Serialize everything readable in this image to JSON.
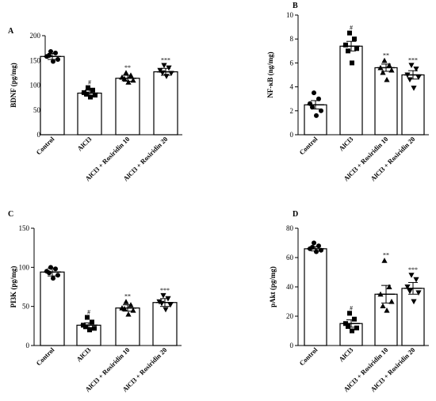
{
  "chart_data": [
    {
      "panel": "A",
      "type": "bar",
      "ylabel": "BDNF (pg/mg)",
      "ylim": [
        0,
        200
      ],
      "yticks": [
        "0",
        "50",
        "100",
        "150",
        "200"
      ],
      "categories": [
        "Control",
        "AlCl3",
        "AlCl3 + Rosiridin 10",
        "AlCl3 + Rosiridin 20"
      ],
      "values": [
        158,
        84,
        114,
        127
      ],
      "errors": [
        6,
        6,
        6,
        7
      ],
      "significance": [
        "",
        "#",
        "**",
        "***"
      ],
      "points": [
        [
          168,
          165,
          158,
          152,
          148,
          160
        ],
        [
          95,
          90,
          85,
          80,
          76,
          82
        ],
        [
          125,
          120,
          116,
          110,
          106,
          113
        ],
        [
          140,
          135,
          130,
          124,
          118,
          125
        ]
      ]
    },
    {
      "panel": "B",
      "type": "bar",
      "ylabel": "NF-κB (ng/mg)",
      "ylim": [
        0,
        10
      ],
      "yticks": [
        "0",
        "2",
        "4",
        "6",
        "8",
        "10"
      ],
      "categories": [
        "Control",
        "AlCl3",
        "AlCl3 + Rosiridin 10",
        "AlCl3 + Rosiridin 20"
      ],
      "values": [
        2.5,
        7.4,
        5.6,
        5.0
      ],
      "errors": [
        0.35,
        0.4,
        0.3,
        0.35
      ],
      "significance": [
        "",
        "#",
        "**",
        "***"
      ],
      "points": [
        [
          3.5,
          3.0,
          2.6,
          2.0,
          1.6,
          2.3
        ],
        [
          8.5,
          8.0,
          7.5,
          7.2,
          6.0,
          7.0
        ],
        [
          6.2,
          5.8,
          5.6,
          5.4,
          4.6,
          5.2
        ],
        [
          5.8,
          5.5,
          5.0,
          4.8,
          3.9,
          4.6
        ]
      ]
    },
    {
      "panel": "C",
      "type": "bar",
      "ylabel": "PI3K (pg/mg)",
      "ylim": [
        0,
        150
      ],
      "yticks": [
        "0",
        "50",
        "100",
        "150"
      ],
      "categories": [
        "Control",
        "AlCl3",
        "AlCl3 + Rosiridin 10",
        "AlCl3 + Rosiridin 20"
      ],
      "values": [
        94,
        26,
        48,
        55
      ],
      "errors": [
        5,
        3,
        4,
        5
      ],
      "significance": [
        "",
        "#",
        "**",
        "***"
      ],
      "points": [
        [
          100,
          98,
          95,
          90,
          86,
          93
        ],
        [
          36,
          30,
          26,
          22,
          20,
          24
        ],
        [
          56,
          52,
          48,
          45,
          40,
          47
        ],
        [
          64,
          60,
          56,
          52,
          46,
          54
        ]
      ]
    },
    {
      "panel": "D",
      "type": "bar",
      "ylabel": "pAkt (pg/mg)",
      "ylim": [
        0,
        80
      ],
      "yticks": [
        "0",
        "20",
        "40",
        "60",
        "80"
      ],
      "categories": [
        "Control",
        "AlCl3",
        "AlCl3 + Rosiridin 10",
        "AlCl3 + Rosiridin 20"
      ],
      "values": [
        66,
        15,
        35,
        39
      ],
      "errors": [
        1.5,
        2.5,
        6,
        4
      ],
      "significance": [
        "",
        "#",
        "**",
        "***"
      ],
      "points": [
        [
          70,
          68,
          66,
          65,
          64,
          67
        ],
        [
          22,
          18,
          15,
          12,
          10,
          13
        ],
        [
          58,
          40,
          35,
          30,
          24,
          27
        ],
        [
          48,
          45,
          40,
          36,
          30,
          37
        ]
      ]
    }
  ]
}
